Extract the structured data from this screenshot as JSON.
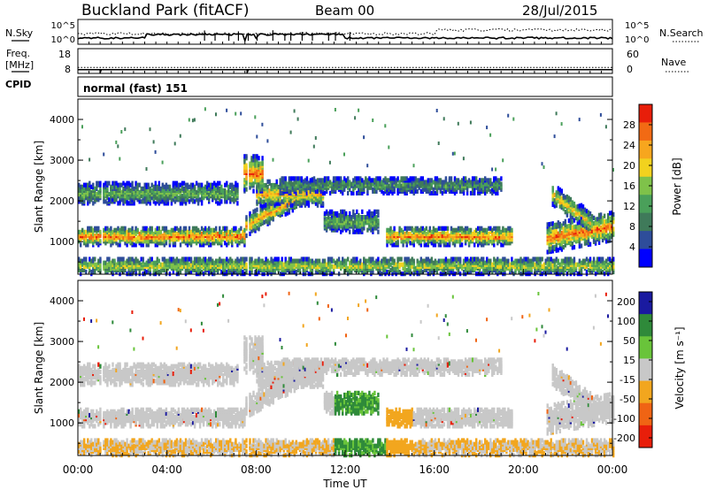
{
  "header": {
    "title": "Buckland Park (fitACF)",
    "beam": "Beam 00",
    "date": "28/Jul/2015"
  },
  "colors": {
    "power": [
      "#0000ff",
      "#2e4d9a",
      "#3f7a5a",
      "#4aa05a",
      "#7fc24a",
      "#f2d21e",
      "#f7a61e",
      "#f26a14",
      "#e81e0a"
    ],
    "velocity": [
      "#1a1aa0",
      "#2f8a3a",
      "#69c43a",
      "#c8c8c8",
      "#f2a61e",
      "#f06414",
      "#e81e0a"
    ]
  },
  "chart_data": [
    {
      "type": "line",
      "panel": "noise",
      "series": [
        {
          "name": "N.Sky",
          "style": "solid"
        },
        {
          "name": "N.Search",
          "style": "dotted"
        }
      ],
      "left_ticks": [
        "10^5",
        "10^0"
      ],
      "right_ticks": [
        "10^5",
        "10^0"
      ]
    },
    {
      "type": "line",
      "panel": "frequency",
      "series": [
        {
          "name": "Freq. [MHz]",
          "style": "solid"
        },
        {
          "name": "Nave",
          "style": "dotted"
        }
      ],
      "left_ticks": [
        "18",
        "8"
      ],
      "right_ticks": [
        "60",
        "0"
      ],
      "ylim_left": [
        8,
        18
      ],
      "ylim_right": [
        0,
        60
      ]
    },
    {
      "type": "text",
      "panel": "cpid",
      "label": "CPID",
      "value": "normal (fast) 151"
    },
    {
      "type": "heatmap",
      "panel": "power",
      "ylabel": "Slant Range [km]",
      "ylim": [
        200,
        4500
      ],
      "yticks": [
        "1000",
        "2000",
        "3000",
        "4000"
      ],
      "colorbar_label": "Power [dB]",
      "colorbar_ticks": [
        "4",
        "8",
        "12",
        "16",
        "20",
        "24",
        "28"
      ],
      "colorbar_range": [
        0,
        32
      ]
    },
    {
      "type": "heatmap",
      "panel": "velocity",
      "ylabel": "Slant Range [km]",
      "xlabel": "Time UT",
      "xticks": [
        "00:00",
        "04:00",
        "08:00",
        "12:00",
        "16:00",
        "20:00",
        "00:00"
      ],
      "xlim_hours": [
        0,
        24
      ],
      "ylim": [
        200,
        4500
      ],
      "yticks": [
        "1000",
        "2000",
        "3000",
        "4000"
      ],
      "colorbar_label": "Velocity [m s⁻¹]",
      "colorbar_ticks": [
        "200",
        "100",
        "50",
        "15",
        "-15",
        "-50",
        "-100",
        "-200"
      ]
    }
  ]
}
